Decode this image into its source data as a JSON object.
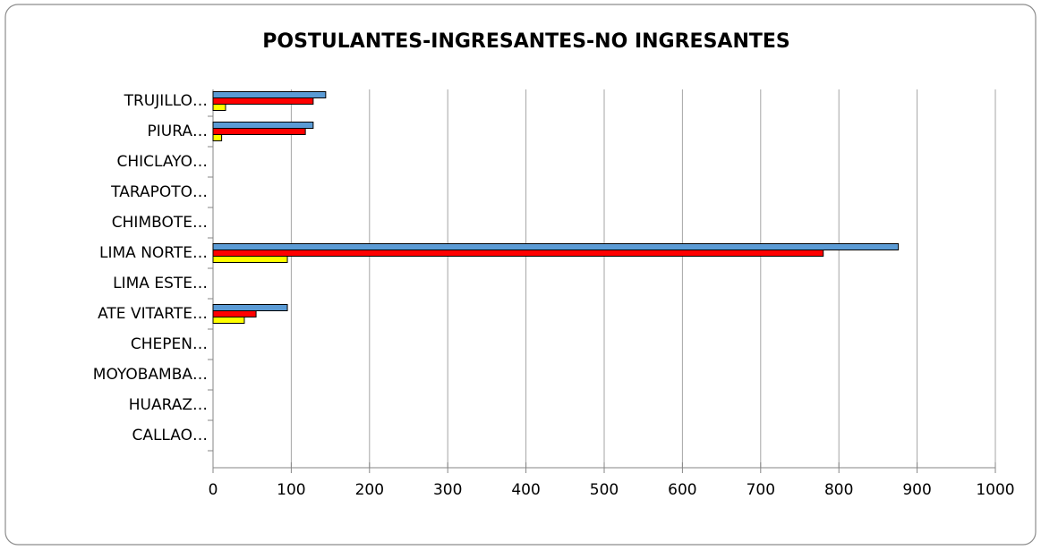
{
  "chart_data": {
    "type": "bar",
    "orientation": "horizontal",
    "title": "POSTULANTES-INGRESANTES-NO INGRESANTES",
    "categories": [
      "TRUJILLO…",
      "PIURA…",
      "CHICLAYO…",
      "TARAPOTO…",
      "CHIMBOTE…",
      "LIMA NORTE…",
      "LIMA ESTE…",
      "ATE VITARTE…",
      "CHEPEN…",
      "MOYOBAMBA…",
      "HUARAZ…",
      "CALLAO…"
    ],
    "series": [
      {
        "color": "#5b9bd5",
        "values": [
          144,
          128,
          0,
          0,
          0,
          876,
          0,
          95,
          0,
          0,
          0,
          0
        ]
      },
      {
        "color": "#ff0000",
        "values": [
          128,
          118,
          0,
          0,
          0,
          780,
          0,
          55,
          0,
          0,
          0,
          0
        ]
      },
      {
        "color": "#ffff00",
        "values": [
          16,
          11,
          0,
          0,
          0,
          95,
          0,
          40,
          0,
          0,
          0,
          0
        ]
      }
    ],
    "xlim": [
      0,
      1000
    ],
    "xticks": [
      0,
      100,
      200,
      300,
      400,
      500,
      600,
      700,
      800,
      900,
      1000
    ],
    "grid": true
  }
}
